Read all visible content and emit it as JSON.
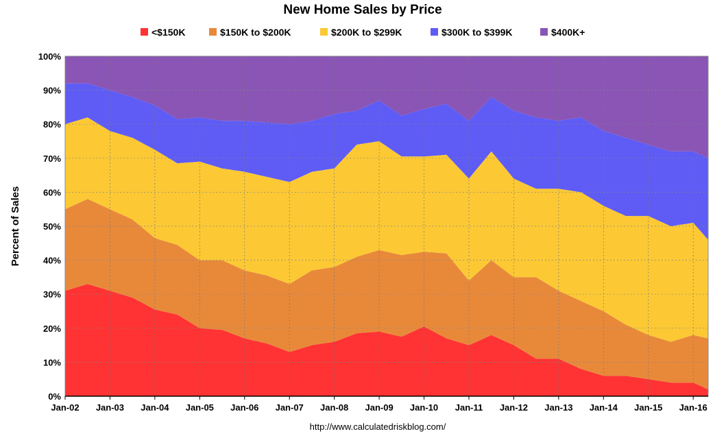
{
  "chart_data": {
    "type": "area",
    "stacked": true,
    "title": "New Home Sales by Price",
    "xlabel": "",
    "ylabel": "Percent of Sales",
    "ylim": [
      0,
      100
    ],
    "y_tick_labels": [
      "0%",
      "10%",
      "20%",
      "30%",
      "40%",
      "50%",
      "60%",
      "70%",
      "80%",
      "90%",
      "100%"
    ],
    "x_tick_labels": [
      "Jan-02",
      "Jan-03",
      "Jan-04",
      "Jan-05",
      "Jan-06",
      "Jan-07",
      "Jan-08",
      "Jan-09",
      "Jan-10",
      "Jan-11",
      "Jan-12",
      "Jan-13",
      "Jan-14",
      "Jan-15",
      "Jan-16"
    ],
    "x_start": "Jan-02",
    "x_end": "May-16",
    "frequency": "monthly",
    "grid": "vertical dashed gridlines at each January, horizontal lines at each 10%",
    "legend_position": "top",
    "source": "http://www.calculatedriskblog.com/",
    "series": [
      {
        "name": "<$150K",
        "color": "#ff3333",
        "anchors": [
          [
            "Jan-02",
            31
          ],
          [
            "Jul-02",
            33
          ],
          [
            "Jan-03",
            31
          ],
          [
            "Jul-03",
            29
          ],
          [
            "Jan-04",
            25.5
          ],
          [
            "Jul-04",
            24
          ],
          [
            "Jan-05",
            20
          ],
          [
            "Jul-05",
            19.5
          ],
          [
            "Jan-06",
            17
          ],
          [
            "Jul-06",
            15.5
          ],
          [
            "Jan-07",
            13
          ],
          [
            "Jul-07",
            15
          ],
          [
            "Jan-08",
            16
          ],
          [
            "Jul-08",
            18.5
          ],
          [
            "Jan-09",
            19
          ],
          [
            "Jul-09",
            17.5
          ],
          [
            "Jan-10",
            20.5
          ],
          [
            "Jul-10",
            17
          ],
          [
            "Jan-11",
            15
          ],
          [
            "Jul-11",
            18
          ],
          [
            "Jan-12",
            15
          ],
          [
            "Jul-12",
            11
          ],
          [
            "Jan-13",
            11
          ],
          [
            "Jul-13",
            8
          ],
          [
            "Jan-14",
            6
          ],
          [
            "Jul-14",
            6
          ],
          [
            "Jan-15",
            5
          ],
          [
            "Jul-15",
            4
          ],
          [
            "Jan-16",
            4
          ],
          [
            "May-16",
            2
          ]
        ]
      },
      {
        "name": "$150K to $200K",
        "color": "#e8893a",
        "anchors": [
          [
            "Jan-02",
            24
          ],
          [
            "Jul-02",
            25
          ],
          [
            "Jan-03",
            24
          ],
          [
            "Jul-03",
            23
          ],
          [
            "Jan-04",
            21
          ],
          [
            "Jul-04",
            20.5
          ],
          [
            "Jan-05",
            20
          ],
          [
            "Jul-05",
            20.5
          ],
          [
            "Jan-06",
            20
          ],
          [
            "Jul-06",
            20
          ],
          [
            "Jan-07",
            20
          ],
          [
            "Jul-07",
            22
          ],
          [
            "Jan-08",
            22
          ],
          [
            "Jul-08",
            22.5
          ],
          [
            "Jan-09",
            24
          ],
          [
            "Jul-09",
            24
          ],
          [
            "Jan-10",
            22
          ],
          [
            "Jul-10",
            25
          ],
          [
            "Jan-11",
            19
          ],
          [
            "Jul-11",
            22
          ],
          [
            "Jan-12",
            20
          ],
          [
            "Jul-12",
            24
          ],
          [
            "Jan-13",
            20
          ],
          [
            "Jul-13",
            20
          ],
          [
            "Jan-14",
            19
          ],
          [
            "Jul-14",
            15
          ],
          [
            "Jan-15",
            13
          ],
          [
            "Jul-15",
            12
          ],
          [
            "Jan-16",
            14
          ],
          [
            "May-16",
            15
          ]
        ]
      },
      {
        "name": "$200K to $299K",
        "color": "#fcc934",
        "anchors": [
          [
            "Jan-02",
            25
          ],
          [
            "Jul-02",
            24
          ],
          [
            "Jan-03",
            23
          ],
          [
            "Jul-03",
            24
          ],
          [
            "Jan-04",
            26
          ],
          [
            "Jul-04",
            24
          ],
          [
            "Jan-05",
            29
          ],
          [
            "Jul-05",
            27
          ],
          [
            "Jan-06",
            29
          ],
          [
            "Jul-06",
            29
          ],
          [
            "Jan-07",
            30
          ],
          [
            "Jul-07",
            29
          ],
          [
            "Jan-08",
            29
          ],
          [
            "Jul-08",
            33
          ],
          [
            "Jan-09",
            32
          ],
          [
            "Jul-09",
            29
          ],
          [
            "Jan-10",
            28
          ],
          [
            "Jul-10",
            29
          ],
          [
            "Jan-11",
            30
          ],
          [
            "Jul-11",
            32
          ],
          [
            "Jan-12",
            29
          ],
          [
            "Jul-12",
            26
          ],
          [
            "Jan-13",
            30
          ],
          [
            "Jul-13",
            32
          ],
          [
            "Jan-14",
            31
          ],
          [
            "Jul-14",
            32
          ],
          [
            "Jan-15",
            35
          ],
          [
            "Jul-15",
            34
          ],
          [
            "Jan-16",
            33
          ],
          [
            "May-16",
            29
          ]
        ]
      },
      {
        "name": "$300K to $399K",
        "color": "#5e5cf5",
        "anchors": [
          [
            "Jan-02",
            12
          ],
          [
            "Jul-02",
            10
          ],
          [
            "Jan-03",
            12
          ],
          [
            "Jul-03",
            12
          ],
          [
            "Jan-04",
            13
          ],
          [
            "Jul-04",
            13
          ],
          [
            "Jan-05",
            13
          ],
          [
            "Jul-05",
            14
          ],
          [
            "Jan-06",
            15
          ],
          [
            "Jul-06",
            16
          ],
          [
            "Jan-07",
            17
          ],
          [
            "Jul-07",
            15
          ],
          [
            "Jan-08",
            16
          ],
          [
            "Jul-08",
            10
          ],
          [
            "Jan-09",
            12
          ],
          [
            "Jul-09",
            12
          ],
          [
            "Jan-10",
            14
          ],
          [
            "Jul-10",
            15
          ],
          [
            "Jan-11",
            17
          ],
          [
            "Jul-11",
            16
          ],
          [
            "Jan-12",
            20
          ],
          [
            "Jul-12",
            21
          ],
          [
            "Jan-13",
            20
          ],
          [
            "Jul-13",
            22
          ],
          [
            "Jan-14",
            22
          ],
          [
            "Jul-14",
            23
          ],
          [
            "Jan-15",
            21
          ],
          [
            "Jul-15",
            22
          ],
          [
            "Jan-16",
            21
          ],
          [
            "May-16",
            24
          ]
        ]
      },
      {
        "name": "$400K+",
        "color": "#8a55b5",
        "anchors": [
          [
            "Jan-02",
            8
          ],
          [
            "Jul-02",
            8
          ],
          [
            "Jan-03",
            10
          ],
          [
            "Jul-03",
            12
          ],
          [
            "Jan-04",
            14.5
          ],
          [
            "Jul-04",
            18.5
          ],
          [
            "Jan-05",
            18
          ],
          [
            "Jul-05",
            19
          ],
          [
            "Jan-06",
            19
          ],
          [
            "Jul-06",
            19.5
          ],
          [
            "Jan-07",
            20
          ],
          [
            "Jul-07",
            19
          ],
          [
            "Jan-08",
            17
          ],
          [
            "Jul-08",
            16
          ],
          [
            "Jan-09",
            13
          ],
          [
            "Jul-09",
            17.5
          ],
          [
            "Jan-10",
            15.5
          ],
          [
            "Jul-10",
            14
          ],
          [
            "Jan-11",
            19
          ],
          [
            "Jul-11",
            12
          ],
          [
            "Jan-12",
            16
          ],
          [
            "Jul-12",
            18
          ],
          [
            "Jan-13",
            19
          ],
          [
            "Jul-13",
            18
          ],
          [
            "Jan-14",
            22
          ],
          [
            "Jul-14",
            24
          ],
          [
            "Jan-15",
            26
          ],
          [
            "Jul-15",
            28
          ],
          [
            "Jan-16",
            28
          ],
          [
            "May-16",
            30
          ]
        ]
      }
    ]
  }
}
